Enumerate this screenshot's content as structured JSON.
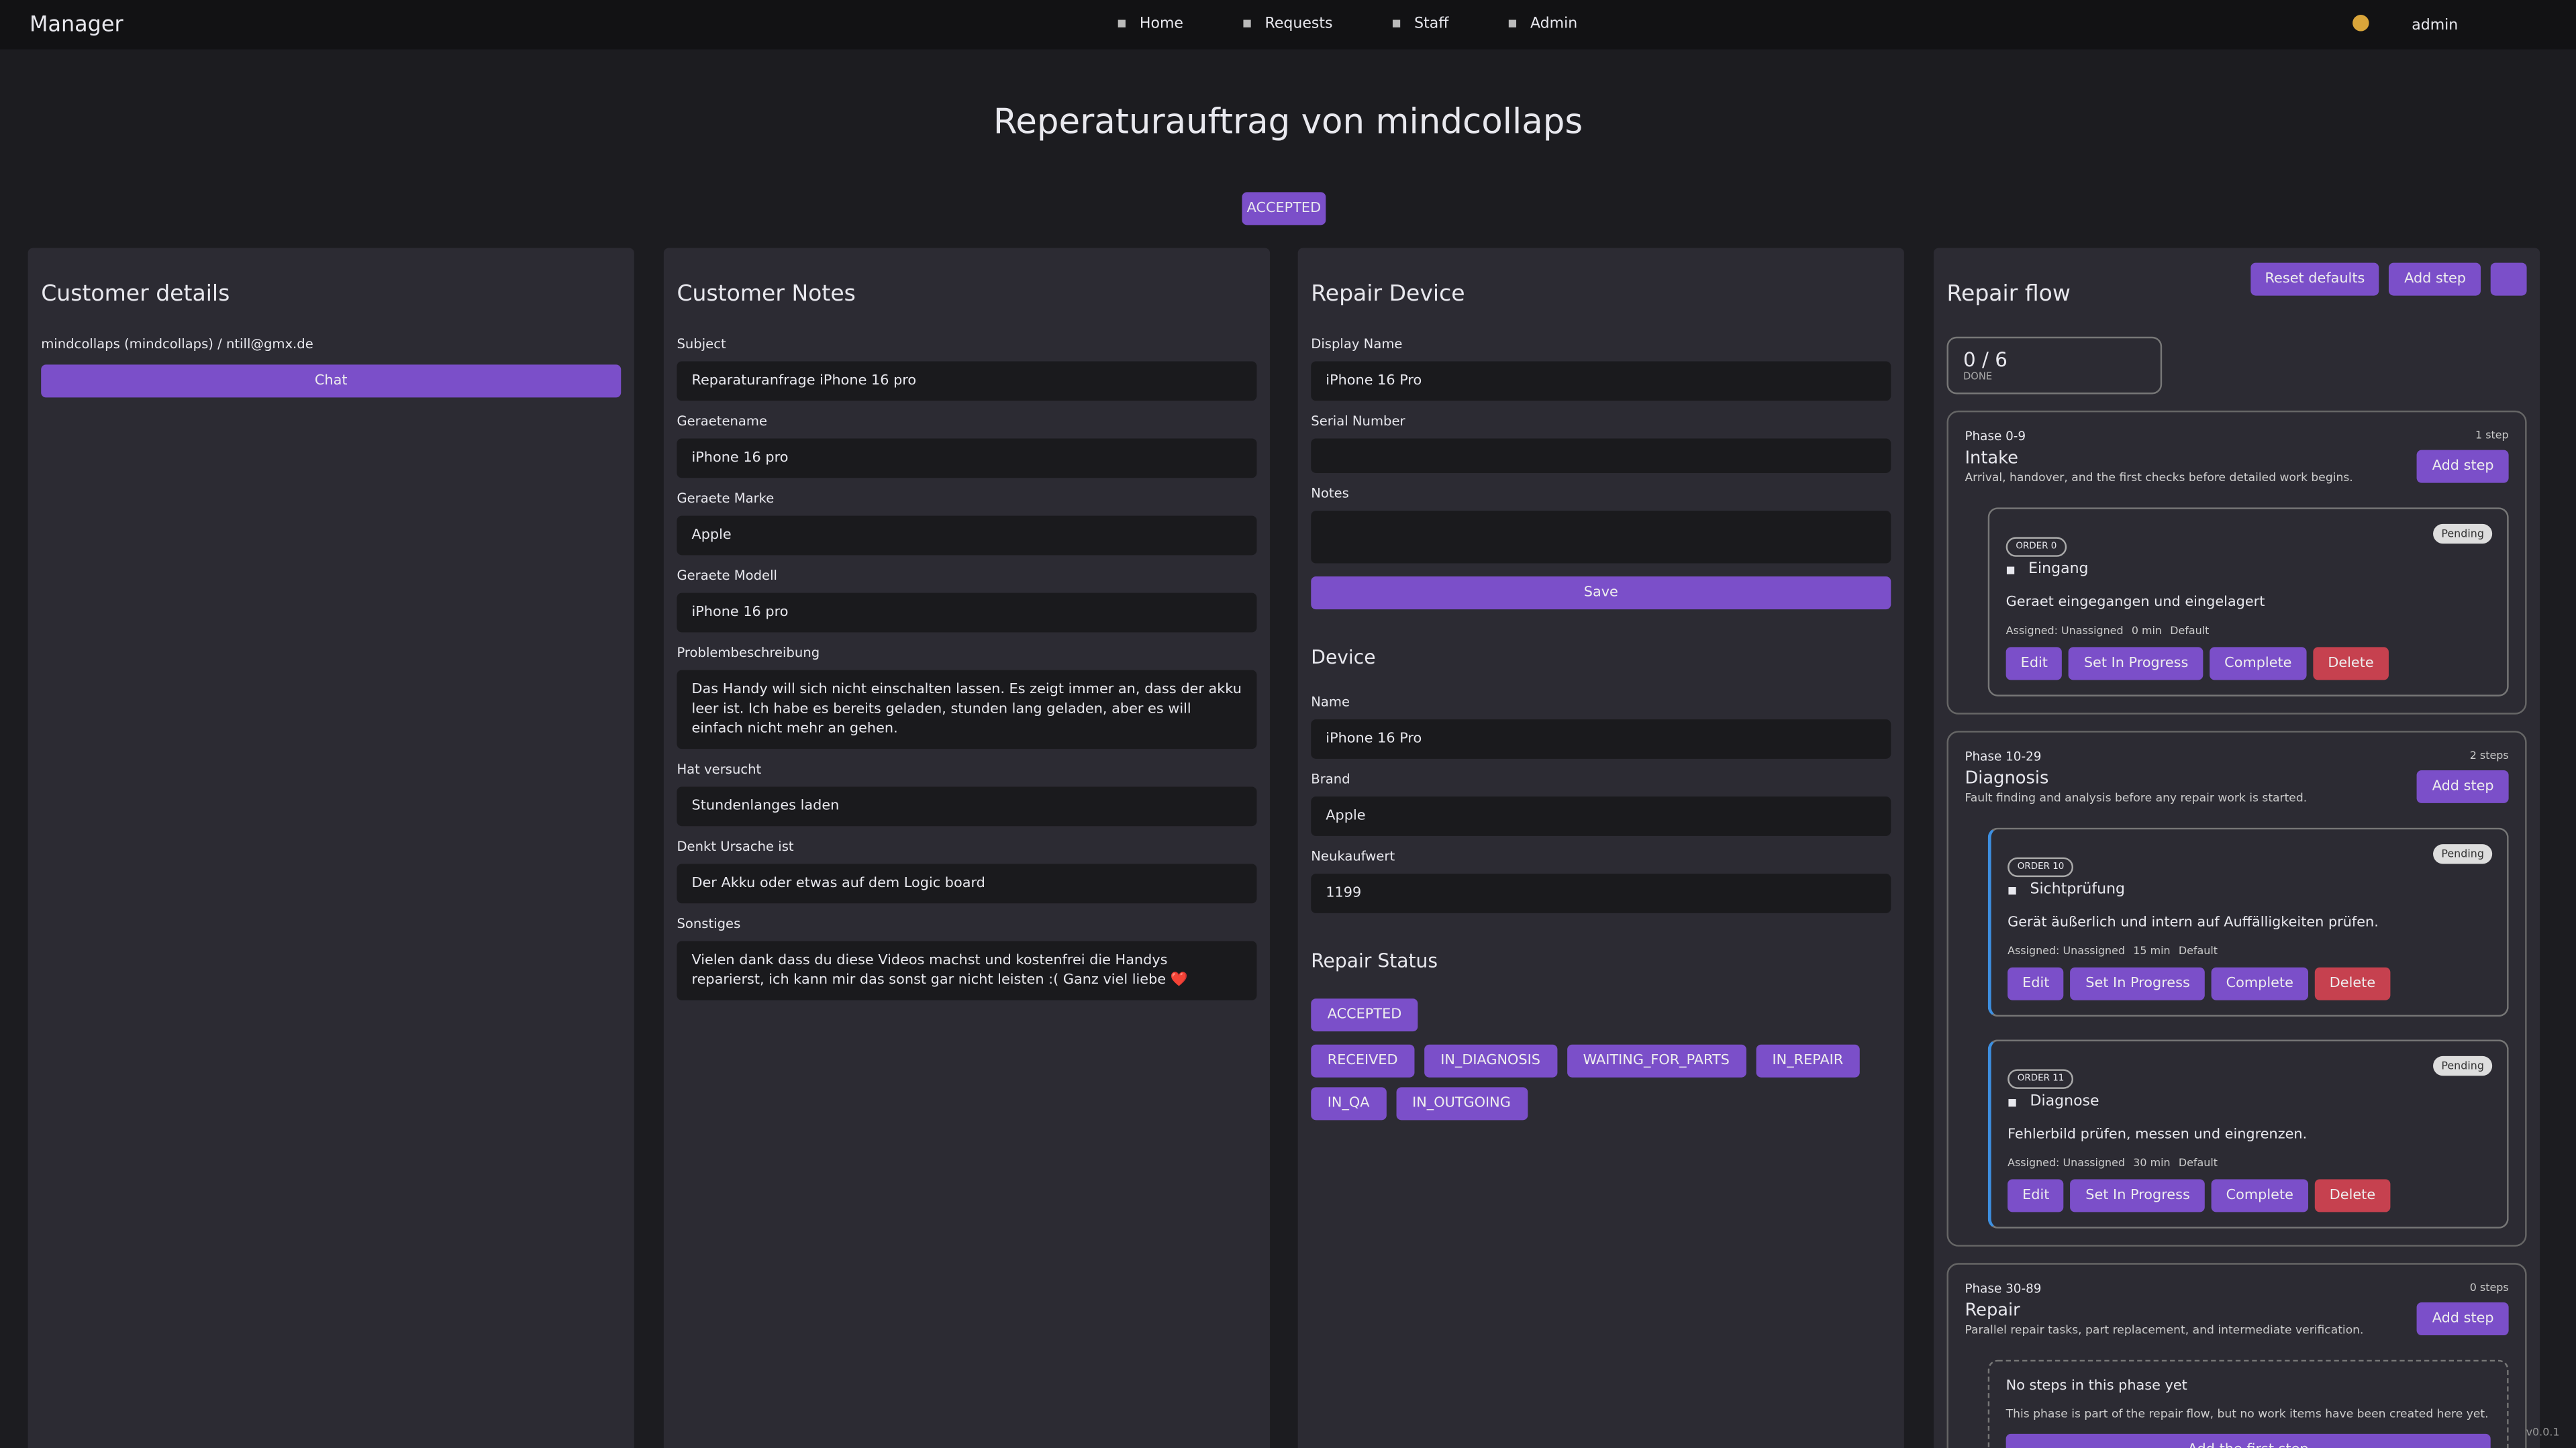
{
  "nav": {
    "brand": "Manager",
    "items": [
      "Home",
      "Requests",
      "Staff",
      "Admin"
    ],
    "user": "admin"
  },
  "header": {
    "title": "Reperaturauftrag von mindcollaps",
    "status": "ACCEPTED"
  },
  "customer": {
    "title": "Customer details",
    "info": "mindcollaps (mindcollaps) / ntill@gmx.de",
    "chat": "Chat"
  },
  "notes": {
    "title": "Customer Notes",
    "fields": [
      {
        "label": "Subject",
        "value": "Reparaturanfrage iPhone 16 pro"
      },
      {
        "label": "Geraetename",
        "value": "iPhone 16 pro"
      },
      {
        "label": "Geraete Marke",
        "value": "Apple"
      },
      {
        "label": "Geraete Modell",
        "value": "iPhone 16 pro"
      },
      {
        "label": "Problembeschreibung",
        "value": "Das Handy will sich nicht einschalten lassen. Es zeigt immer an, dass der akku leer ist. Ich habe es bereits geladen, stunden lang geladen, aber es will einfach nicht mehr an gehen."
      },
      {
        "label": "Hat versucht",
        "value": "Stundenlanges laden"
      },
      {
        "label": "Denkt Ursache ist",
        "value": "Der Akku oder etwas auf dem Logic board"
      },
      {
        "label": "Sonstiges",
        "value": "Vielen dank dass du diese Videos machst und kostenfrei die Handys reparierst, ich kann mir das sonst gar nicht leisten :( Ganz viel liebe ❤️"
      }
    ]
  },
  "repair_device": {
    "title": "Repair Device",
    "fields": [
      {
        "label": "Display Name",
        "value": "iPhone 16 Pro"
      },
      {
        "label": "Serial Number"
      },
      {
        "label": "Notes"
      }
    ],
    "save": "Save",
    "device_title": "Device",
    "device_fields": [
      {
        "label": "Name",
        "value": "iPhone 16 Pro"
      },
      {
        "label": "Brand",
        "value": "Apple"
      },
      {
        "label": "Neukaufwert",
        "value": 1199
      }
    ],
    "status_title": "Repair Status",
    "current": "ACCEPTED",
    "options": [
      "RECEIVED",
      "IN_DIAGNOSIS",
      "WAITING_FOR_PARTS",
      "IN_REPAIR",
      "IN_QA",
      "IN_OUTGOING"
    ]
  },
  "flow": {
    "title": "Repair flow",
    "buttons": [
      "Reset defaults",
      "Add step"
    ],
    "progress": {
      "count": "0 / 6",
      "label": "DONE"
    },
    "phases": [
      {
        "range": "Phase 0-9",
        "count": "1 step",
        "name": "Intake",
        "desc": "Arrival, handover, and the first checks before detailed work begins.",
        "add": "Add step",
        "steps": [
          {
            "order": "ORDER 0",
            "status": "Pending",
            "name": "Eingang",
            "desc": "Geraet eingegangen und eingelagert",
            "meta": [
              "Assigned: Unassigned",
              "0 min",
              "Default"
            ],
            "actions": [
              "Edit",
              "Set In Progress",
              "Complete",
              "Delete"
            ]
          }
        ]
      },
      {
        "range": "Phase 10-29",
        "count": "2 steps",
        "name": "Diagnosis",
        "desc": "Fault finding and analysis before any repair work is started.",
        "add": "Add step",
        "steps": [
          {
            "order": "ORDER 10",
            "status": "Pending",
            "name": "Sichtprüfung",
            "desc": "Gerät äußerlich und intern auf Auffälligkeiten prüfen.",
            "meta": [
              "Assigned: Unassigned",
              "15 min",
              "Default"
            ],
            "actions": [
              "Edit",
              "Set In Progress",
              "Complete",
              "Delete"
            ]
          },
          {
            "order": "ORDER 11",
            "status": "Pending",
            "name": "Diagnose",
            "desc": "Fehlerbild prüfen, messen und eingrenzen.",
            "meta": [
              "Assigned: Unassigned",
              "30 min",
              "Default"
            ],
            "actions": [
              "Edit",
              "Set In Progress",
              "Complete",
              "Delete"
            ]
          }
        ]
      },
      {
        "range": "Phase 30-89",
        "count": "0 steps",
        "name": "Repair",
        "desc": "Parallel repair tasks, part replacement, and intermediate verification.",
        "add": "Add step",
        "empty": {
          "title": "No steps in this phase yet",
          "text": "This phase is part of the repair flow, but no work items have been created here yet.",
          "button": "Add the first step"
        }
      }
    ]
  },
  "version": "v0.0.1"
}
